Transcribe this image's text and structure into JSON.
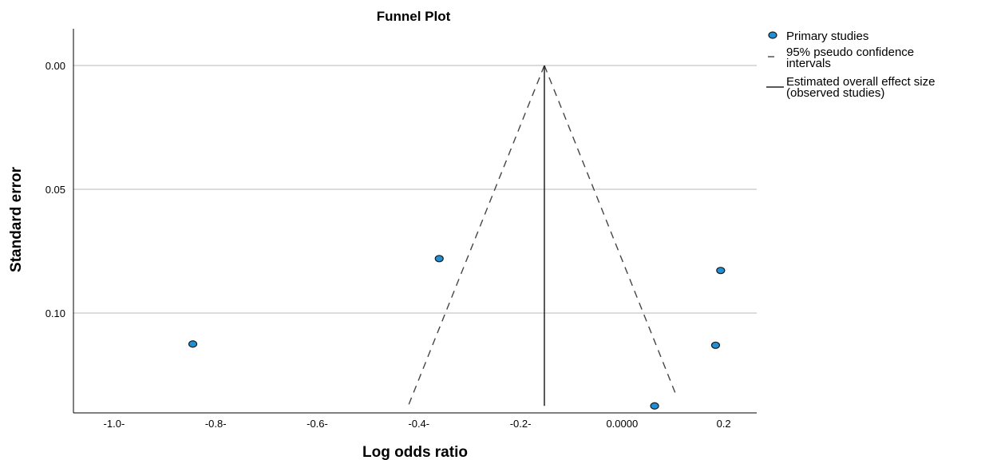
{
  "chart_data": {
    "type": "scatter",
    "title": "Funnel Plot",
    "xlabel": "Log odds ratio",
    "ylabel": "Standard error",
    "xlim": [
      -1.08,
      0.265
    ],
    "ylim": [
      0,
      0.14
    ],
    "y_inverted": true,
    "x_ticks": [
      -1.0,
      -0.8,
      -0.6,
      -0.4,
      -0.2,
      0.0,
      0.2
    ],
    "x_tick_labels": [
      "-1.0-",
      "-0.8-",
      "-0.6-",
      "-0.4-",
      "-0.2-",
      "0.0000",
      "0.2"
    ],
    "y_ticks": [
      0.0,
      0.05,
      0.1
    ],
    "y_tick_labels": [
      "0.00",
      "0.05",
      "0.10"
    ],
    "grid": "horizontal",
    "legend_position": "top-right",
    "series": [
      {
        "name": "Primary studies",
        "color": "#1f8fd6",
        "points": [
          {
            "x": -0.845,
            "y": 0.1125
          },
          {
            "x": -0.36,
            "y": 0.078
          },
          {
            "x": 0.064,
            "y": 0.1375
          },
          {
            "x": 0.184,
            "y": 0.113
          },
          {
            "x": 0.194,
            "y": 0.0828
          }
        ]
      }
    ],
    "confidence_intervals": {
      "name": "95% pseudo confidence\nintervals",
      "apex": {
        "x": -0.153,
        "y": 0.0
      },
      "left_end": {
        "x": -0.42,
        "y": 0.137
      },
      "right_end": {
        "x": 0.108,
        "y": 0.134
      }
    },
    "overall_effect": {
      "name": "Estimated overall effect size\n(observed studies)",
      "x": -0.153,
      "y_range": [
        0.0,
        0.1375
      ]
    }
  }
}
